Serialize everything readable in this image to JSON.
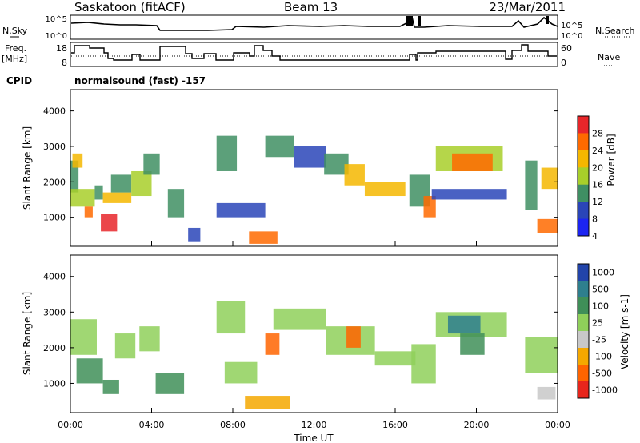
{
  "header": {
    "site": "Saskatoon (fitACF)",
    "beam": "Beam 13",
    "date": "23/Mar/2011"
  },
  "nsky_panel": {
    "left_label": "N.Sky",
    "right_label": "N.Search",
    "left_ticks": [
      "10^5",
      "10^0"
    ],
    "right_ticks": [
      "10^5",
      "10^0"
    ]
  },
  "freq_panel": {
    "left_label_line1": "Freq.",
    "left_label_line2": "[MHz]",
    "right_label": "Nave",
    "left_ticks": [
      "18",
      "8"
    ],
    "right_ticks": [
      "60",
      "0"
    ]
  },
  "cpid": {
    "label": "CPID",
    "text": "normalsound (fast) -157"
  },
  "x_axis": {
    "label": "Time UT",
    "ticks": [
      "00:00",
      "04:00",
      "08:00",
      "12:00",
      "16:00",
      "20:00",
      "00:00"
    ]
  },
  "chart_data": [
    {
      "type": "heatmap",
      "title": "",
      "xlabel": "",
      "ylabel": "Slant Range [km]",
      "x_range_hours": [
        0,
        24
      ],
      "ylim": [
        180,
        4600
      ],
      "yticks": [
        1000,
        2000,
        3000,
        4000
      ],
      "colorbar": {
        "label": "Power [dB]",
        "ticks": [
          "28",
          "24",
          "20",
          "16",
          "12",
          "8",
          "4"
        ],
        "colors": [
          "#e8262a",
          "#ff6a00",
          "#f5b700",
          "#a8cf2a",
          "#3f8f63",
          "#2a45b8",
          "#1c24f2"
        ]
      },
      "regions": [
        {
          "t0": 0.0,
          "t1": 0.4,
          "r0": 1700,
          "r1": 2600,
          "level": "12"
        },
        {
          "t0": 0.1,
          "t1": 0.6,
          "r0": 2400,
          "r1": 2800,
          "level": "20"
        },
        {
          "t0": 0.0,
          "t1": 1.2,
          "r0": 1300,
          "r1": 1800,
          "level": "16"
        },
        {
          "t0": 0.7,
          "t1": 1.1,
          "r0": 1000,
          "r1": 1300,
          "level": "24"
        },
        {
          "t0": 1.2,
          "t1": 1.6,
          "r0": 1500,
          "r1": 1900,
          "level": "12"
        },
        {
          "t0": 1.5,
          "t1": 2.3,
          "r0": 600,
          "r1": 1100,
          "level": "28"
        },
        {
          "t0": 1.6,
          "t1": 3.0,
          "r0": 1400,
          "r1": 1700,
          "level": "20"
        },
        {
          "t0": 2.0,
          "t1": 3.0,
          "r0": 1700,
          "r1": 2200,
          "level": "12"
        },
        {
          "t0": 3.0,
          "t1": 4.0,
          "r0": 1600,
          "r1": 2300,
          "level": "16"
        },
        {
          "t0": 3.6,
          "t1": 4.4,
          "r0": 2200,
          "r1": 2800,
          "level": "12"
        },
        {
          "t0": 4.8,
          "t1": 5.6,
          "r0": 1000,
          "r1": 1800,
          "level": "12"
        },
        {
          "t0": 5.8,
          "t1": 6.4,
          "r0": 300,
          "r1": 700,
          "level": "8"
        },
        {
          "t0": 7.2,
          "t1": 8.2,
          "r0": 2300,
          "r1": 3300,
          "level": "12"
        },
        {
          "t0": 7.2,
          "t1": 9.6,
          "r0": 1000,
          "r1": 1400,
          "level": "8"
        },
        {
          "t0": 8.8,
          "t1": 10.2,
          "r0": 250,
          "r1": 600,
          "level": "24"
        },
        {
          "t0": 9.6,
          "t1": 11.0,
          "r0": 2700,
          "r1": 3300,
          "level": "12"
        },
        {
          "t0": 11.0,
          "t1": 12.6,
          "r0": 2400,
          "r1": 3000,
          "level": "8"
        },
        {
          "t0": 12.5,
          "t1": 13.7,
          "r0": 2200,
          "r1": 2800,
          "level": "12"
        },
        {
          "t0": 13.5,
          "t1": 14.5,
          "r0": 1900,
          "r1": 2500,
          "level": "20"
        },
        {
          "t0": 14.5,
          "t1": 16.5,
          "r0": 1600,
          "r1": 2000,
          "level": "20"
        },
        {
          "t0": 16.7,
          "t1": 17.7,
          "r0": 1300,
          "r1": 2200,
          "level": "12"
        },
        {
          "t0": 17.4,
          "t1": 18.0,
          "r0": 1000,
          "r1": 1600,
          "level": "24"
        },
        {
          "t0": 17.8,
          "t1": 21.5,
          "r0": 1500,
          "r1": 1800,
          "level": "8"
        },
        {
          "t0": 18.0,
          "t1": 21.3,
          "r0": 2300,
          "r1": 3000,
          "level": "16"
        },
        {
          "t0": 18.8,
          "t1": 20.8,
          "r0": 2300,
          "r1": 2800,
          "level": "24"
        },
        {
          "t0": 22.4,
          "t1": 23.0,
          "r0": 1200,
          "r1": 2600,
          "level": "12"
        },
        {
          "t0": 23.2,
          "t1": 24.0,
          "r0": 1800,
          "r1": 2400,
          "level": "20"
        },
        {
          "t0": 23.0,
          "t1": 24.0,
          "r0": 550,
          "r1": 950,
          "level": "24"
        }
      ]
    },
    {
      "type": "heatmap",
      "title": "",
      "xlabel": "Time UT",
      "ylabel": "Slant Range [km]",
      "x_range_hours": [
        0,
        24
      ],
      "ylim": [
        180,
        4600
      ],
      "yticks": [
        1000,
        2000,
        3000,
        4000
      ],
      "colorbar": {
        "label": "Velocity [m s-1]",
        "ticks": [
          "1000",
          "500",
          "100",
          "25",
          "-25",
          "-100",
          "-500",
          "-1000"
        ],
        "colors": [
          "#2244aa",
          "#2e7f8e",
          "#3f8f58",
          "#8fd05a",
          "#c8c8c8",
          "#f5a800",
          "#ff6400",
          "#e8261c"
        ]
      },
      "regions": [
        {
          "t0": 0.0,
          "t1": 1.3,
          "r0": 1800,
          "r1": 2800,
          "level": "25"
        },
        {
          "t0": 0.3,
          "t1": 1.6,
          "r0": 1000,
          "r1": 1700,
          "level": "100"
        },
        {
          "t0": 1.6,
          "t1": 2.4,
          "r0": 700,
          "r1": 1100,
          "level": "100"
        },
        {
          "t0": 2.2,
          "t1": 3.2,
          "r0": 1700,
          "r1": 2400,
          "level": "25"
        },
        {
          "t0": 3.4,
          "t1": 4.4,
          "r0": 1900,
          "r1": 2600,
          "level": "25"
        },
        {
          "t0": 4.2,
          "t1": 5.6,
          "r0": 700,
          "r1": 1300,
          "level": "100"
        },
        {
          "t0": 7.2,
          "t1": 8.6,
          "r0": 2400,
          "r1": 3300,
          "level": "25"
        },
        {
          "t0": 7.6,
          "t1": 9.2,
          "r0": 1000,
          "r1": 1600,
          "level": "25"
        },
        {
          "t0": 8.6,
          "t1": 10.8,
          "r0": 280,
          "r1": 650,
          "level": "-100"
        },
        {
          "t0": 9.6,
          "t1": 10.3,
          "r0": 1800,
          "r1": 2400,
          "level": "-500"
        },
        {
          "t0": 10.0,
          "t1": 12.6,
          "r0": 2500,
          "r1": 3100,
          "level": "25"
        },
        {
          "t0": 12.6,
          "t1": 15.0,
          "r0": 1800,
          "r1": 2600,
          "level": "25"
        },
        {
          "t0": 13.6,
          "t1": 14.3,
          "r0": 2000,
          "r1": 2600,
          "level": "-500"
        },
        {
          "t0": 15.0,
          "t1": 17.0,
          "r0": 1500,
          "r1": 1900,
          "level": "25"
        },
        {
          "t0": 16.8,
          "t1": 18.0,
          "r0": 1000,
          "r1": 2100,
          "level": "25"
        },
        {
          "t0": 18.0,
          "t1": 21.5,
          "r0": 2300,
          "r1": 3000,
          "level": "25"
        },
        {
          "t0": 18.6,
          "t1": 20.2,
          "r0": 2400,
          "r1": 2900,
          "level": "500"
        },
        {
          "t0": 19.2,
          "t1": 20.4,
          "r0": 1800,
          "r1": 2400,
          "level": "100"
        },
        {
          "t0": 22.4,
          "t1": 24.0,
          "r0": 1300,
          "r1": 2300,
          "level": "25"
        },
        {
          "t0": 23.0,
          "t1": 23.9,
          "r0": 550,
          "r1": 900,
          "level": "-25"
        }
      ]
    }
  ]
}
